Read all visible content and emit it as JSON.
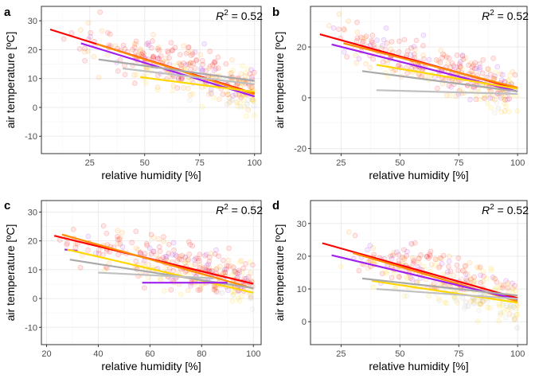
{
  "chart_data": [
    {
      "type": "scatter",
      "panel_label": "a",
      "xlabel": "relative humidity [%]",
      "ylabel": "air temperature [ºC]",
      "annotation": {
        "lhs": "R",
        "sup": "2",
        "rhs": " = 0.52"
      },
      "xlim": [
        3,
        103
      ],
      "ylim": [
        -16,
        35
      ],
      "xticks": [
        25,
        50,
        75,
        100
      ],
      "yticks": [
        -10,
        0,
        10,
        20,
        30
      ],
      "grid": true,
      "legend": "none",
      "cloud": {
        "seed": 11,
        "xmin": 8,
        "xmax": 100,
        "slope": -0.24,
        "intercept": 29,
        "spread": 7.5,
        "ymin": -13,
        "ymax": 33
      },
      "series": [
        {
          "color": "#ff0000",
          "x": [
            7,
            100
          ],
          "y": [
            27,
            4.8
          ]
        },
        {
          "color": "#ff8c00",
          "x": [
            28,
            100
          ],
          "y": [
            22,
            4.5
          ]
        },
        {
          "color": "#a020f0",
          "x": [
            21,
            100
          ],
          "y": [
            22.2,
            3.8
          ]
        },
        {
          "color": "#ffd700",
          "x": [
            48,
            100
          ],
          "y": [
            10.5,
            5.4
          ]
        },
        {
          "color": "#a9a9a9",
          "x": [
            29,
            100
          ],
          "y": [
            16.6,
            9.2
          ]
        },
        {
          "color": "#c0c0c0",
          "x": [
            40,
            100
          ],
          "y": [
            13.5,
            8
          ]
        }
      ]
    },
    {
      "type": "scatter",
      "panel_label": "b",
      "xlabel": "relative humidity [%]",
      "ylabel": "air temperature [ºC]",
      "annotation": {
        "lhs": "R",
        "sup": "2",
        "rhs": " = 0.52"
      },
      "xlim": [
        12,
        104
      ],
      "ylim": [
        -22,
        36
      ],
      "xticks": [
        25,
        50,
        75,
        100
      ],
      "yticks": [
        -20,
        0,
        20
      ],
      "grid": true,
      "legend": "none",
      "cloud": {
        "seed": 23,
        "xmin": 18,
        "xmax": 100,
        "slope": -0.28,
        "intercept": 30,
        "spread": 7.5,
        "ymin": -21,
        "ymax": 33
      },
      "series": [
        {
          "color": "#ff0000",
          "x": [
            16,
            100
          ],
          "y": [
            25,
            3.5
          ]
        },
        {
          "color": "#ff8c00",
          "x": [
            26,
            100
          ],
          "y": [
            21.5,
            4
          ]
        },
        {
          "color": "#a020f0",
          "x": [
            21,
            100
          ],
          "y": [
            21,
            2.5
          ]
        },
        {
          "color": "#ffd700",
          "x": [
            40,
            100
          ],
          "y": [
            13,
            3.5
          ]
        },
        {
          "color": "#a9a9a9",
          "x": [
            34,
            100
          ],
          "y": [
            10.5,
            2.5
          ]
        },
        {
          "color": "#c0c0c0",
          "x": [
            40,
            100
          ],
          "y": [
            3,
            1.5
          ]
        }
      ]
    },
    {
      "type": "scatter",
      "panel_label": "c",
      "xlabel": "relative humidity [%]",
      "ylabel": "air temperature [ºC]",
      "annotation": {
        "lhs": "R",
        "sup": "2",
        "rhs": " = 0.52"
      },
      "xlim": [
        18,
        103
      ],
      "ylim": [
        -16,
        34
      ],
      "xticks": [
        20,
        40,
        60,
        80,
        100
      ],
      "yticks": [
        -10,
        0,
        10,
        20,
        30
      ],
      "grid": true,
      "legend": "none",
      "cloud": {
        "seed": 37,
        "xmin": 22,
        "xmax": 100,
        "slope": -0.22,
        "intercept": 27,
        "spread": 7,
        "ymin": -13,
        "ymax": 31
      },
      "series": [
        {
          "color": "#ff0000",
          "x": [
            23,
            100
          ],
          "y": [
            21.8,
            5.1
          ]
        },
        {
          "color": "#ff8c00",
          "x": [
            26,
            100
          ],
          "y": [
            22.2,
            3.5
          ]
        },
        {
          "color": "#a020f0",
          "x": [
            27,
            32
          ],
          "y": [
            17,
            16.5
          ]
        },
        {
          "color": "#ffd700",
          "x": [
            28,
            100
          ],
          "y": [
            17,
            2
          ]
        },
        {
          "color": "#a9a9a9",
          "x": [
            29,
            100
          ],
          "y": [
            13.5,
            3.6
          ]
        },
        {
          "color": "#c0c0c0",
          "x": [
            40,
            85
          ],
          "y": [
            9,
            7
          ]
        },
        {
          "color": "#a020f0",
          "x": [
            57,
            90
          ],
          "y": [
            5.5,
            5.5
          ]
        }
      ]
    },
    {
      "type": "scatter",
      "panel_label": "d",
      "xlabel": "relative humidity [%]",
      "ylabel": "air temperature [ºC]",
      "annotation": {
        "lhs": "R",
        "sup": "2",
        "rhs": " = 0.52"
      },
      "xlim": [
        12,
        104
      ],
      "ylim": [
        -7,
        37
      ],
      "xticks": [
        25,
        50,
        75,
        100
      ],
      "yticks": [
        0,
        10,
        20,
        30
      ],
      "grid": true,
      "legend": "none",
      "cloud": {
        "seed": 53,
        "xmin": 17,
        "xmax": 100,
        "slope": -0.22,
        "intercept": 28,
        "spread": 6.5,
        "ymin": -4,
        "ymax": 35
      },
      "series": [
        {
          "color": "#ff0000",
          "x": [
            17,
            100
          ],
          "y": [
            24,
            7.2
          ]
        },
        {
          "color": "#ff8c00",
          "x": [
            30,
            100
          ],
          "y": [
            21,
            6.2
          ]
        },
        {
          "color": "#a020f0",
          "x": [
            21,
            100
          ],
          "y": [
            20.3,
            6.8
          ]
        },
        {
          "color": "#ffd700",
          "x": [
            38,
            100
          ],
          "y": [
            12.5,
            5.8
          ]
        },
        {
          "color": "#a9a9a9",
          "x": [
            34,
            100
          ],
          "y": [
            13.2,
            8
          ]
        },
        {
          "color": "#c0c0c0",
          "x": [
            40,
            100
          ],
          "y": [
            10,
            7
          ]
        }
      ]
    }
  ],
  "colors": {
    "panel_border": "#333333",
    "grid_major": "#ebebeb",
    "grid_minor": "#f5f5f5",
    "point_palette": [
      "#ff0000",
      "#ff8c00",
      "#ffd700",
      "#a020f0",
      "#a9a9a9",
      "#c8c8c8"
    ]
  }
}
